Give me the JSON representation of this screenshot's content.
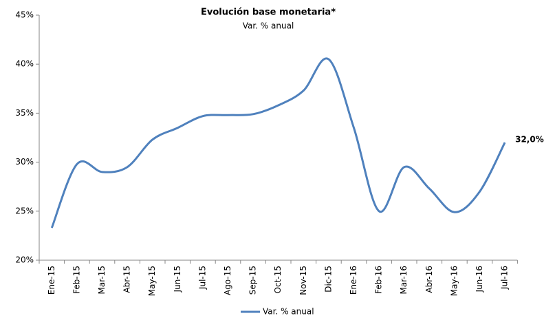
{
  "chart_data": {
    "type": "line",
    "title": "Evolución base monetaria*",
    "subtitle": "Var. % anual",
    "categories": [
      "Ene-15",
      "Feb-15",
      "Mar-15",
      "Abr-15",
      "May-15",
      "Jun-15",
      "Jul-15",
      "Ago-15",
      "Sep-15",
      "Oct-15",
      "Nov-15",
      "Dic-15",
      "Ene-16",
      "Feb-16",
      "Mar-16",
      "Abr-16",
      "May-16",
      "Jun-16",
      "Jul-16"
    ],
    "series": [
      {
        "name": "Var. % anual",
        "color": "#4f81bd",
        "values": [
          23.3,
          29.8,
          29.0,
          29.5,
          32.3,
          33.5,
          34.7,
          34.8,
          34.9,
          35.8,
          37.3,
          40.5,
          33.5,
          25.0,
          29.5,
          27.3,
          24.9,
          27.0,
          32.0
        ],
        "value_labels": [
          null,
          null,
          null,
          null,
          null,
          null,
          null,
          null,
          null,
          null,
          null,
          null,
          null,
          null,
          null,
          null,
          null,
          null,
          "32,0%"
        ]
      }
    ],
    "ylim": [
      20,
      45
    ],
    "yticks": [
      {
        "value": 20,
        "label": "20%"
      },
      {
        "value": 25,
        "label": "25%"
      },
      {
        "value": 30,
        "label": "30%"
      },
      {
        "value": 35,
        "label": "35%"
      },
      {
        "value": 40,
        "label": "40%"
      },
      {
        "value": 45,
        "label": "45%"
      }
    ],
    "legend": "bottom"
  }
}
